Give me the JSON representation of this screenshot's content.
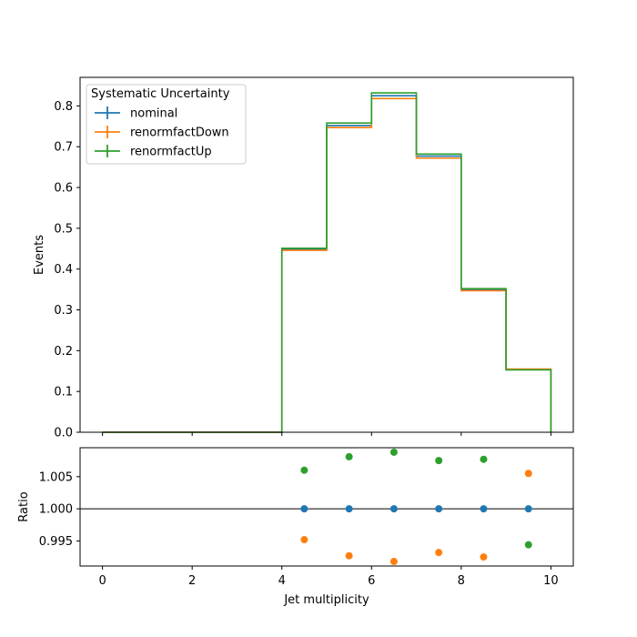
{
  "colors": {
    "nominal": "#1f77b4",
    "renormfactDown": "#ff7f0e",
    "renormfactUp": "#2ca02c",
    "axis": "#000000",
    "reference_line": "#000000"
  },
  "chart_data": [
    {
      "type": "step",
      "panel": "main",
      "ylabel": "Events",
      "xlim": [
        -0.5,
        10.5
      ],
      "ylim": [
        0,
        0.87
      ],
      "bin_edges": [
        0,
        1,
        2,
        3,
        4,
        5,
        6,
        7,
        8,
        9,
        10
      ],
      "xticks": [
        0,
        2,
        4,
        6,
        8,
        10
      ],
      "yticks": [
        0.0,
        0.1,
        0.2,
        0.3,
        0.4,
        0.5,
        0.6,
        0.7,
        0.8
      ],
      "ytick_labels": [
        "0.0",
        "0.1",
        "0.2",
        "0.3",
        "0.4",
        "0.5",
        "0.6",
        "0.7",
        "0.8"
      ],
      "legend": {
        "title": "Systematic Uncertainty",
        "placement": "top-left"
      },
      "series": [
        {
          "key": "nominal",
          "name": "nominal",
          "values": [
            0,
            0,
            0,
            0,
            0.448,
            0.752,
            0.825,
            0.677,
            0.349,
            0.154
          ]
        },
        {
          "key": "renormfactDown",
          "name": "renormfactDown",
          "values": [
            0,
            0,
            0,
            0,
            0.446,
            0.747,
            0.818,
            0.672,
            0.347,
            0.155
          ]
        },
        {
          "key": "renormfactUp",
          "name": "renormfactUp",
          "values": [
            0,
            0,
            0,
            0,
            0.451,
            0.758,
            0.832,
            0.682,
            0.352,
            0.153
          ]
        }
      ]
    },
    {
      "type": "scatter",
      "panel": "ratio",
      "xlabel": "Jet multiplicity",
      "ylabel": "Ratio",
      "xlim": [
        -0.5,
        10.5
      ],
      "ylim": [
        0.9911,
        1.0095
      ],
      "xticks": [
        0,
        2,
        4,
        6,
        8,
        10
      ],
      "xtick_labels": [
        "0",
        "2",
        "4",
        "6",
        "8",
        "10"
      ],
      "yticks": [
        0.995,
        1.0,
        1.005
      ],
      "ytick_labels": [
        "0.995",
        "1.000",
        "1.005"
      ],
      "reference_line": 1.0,
      "x": [
        4.5,
        5.5,
        6.5,
        7.5,
        8.5,
        9.5
      ],
      "series": [
        {
          "key": "nominal",
          "values": [
            1.0,
            1.0,
            1.0,
            1.0,
            1.0,
            1.0
          ]
        },
        {
          "key": "renormfactDown",
          "values": [
            0.9952,
            0.9927,
            0.9918,
            0.9932,
            0.9925,
            1.0055
          ]
        },
        {
          "key": "renormfactUp",
          "values": [
            1.006,
            1.0081,
            1.0088,
            1.0075,
            1.0077,
            0.9944
          ]
        }
      ]
    }
  ]
}
